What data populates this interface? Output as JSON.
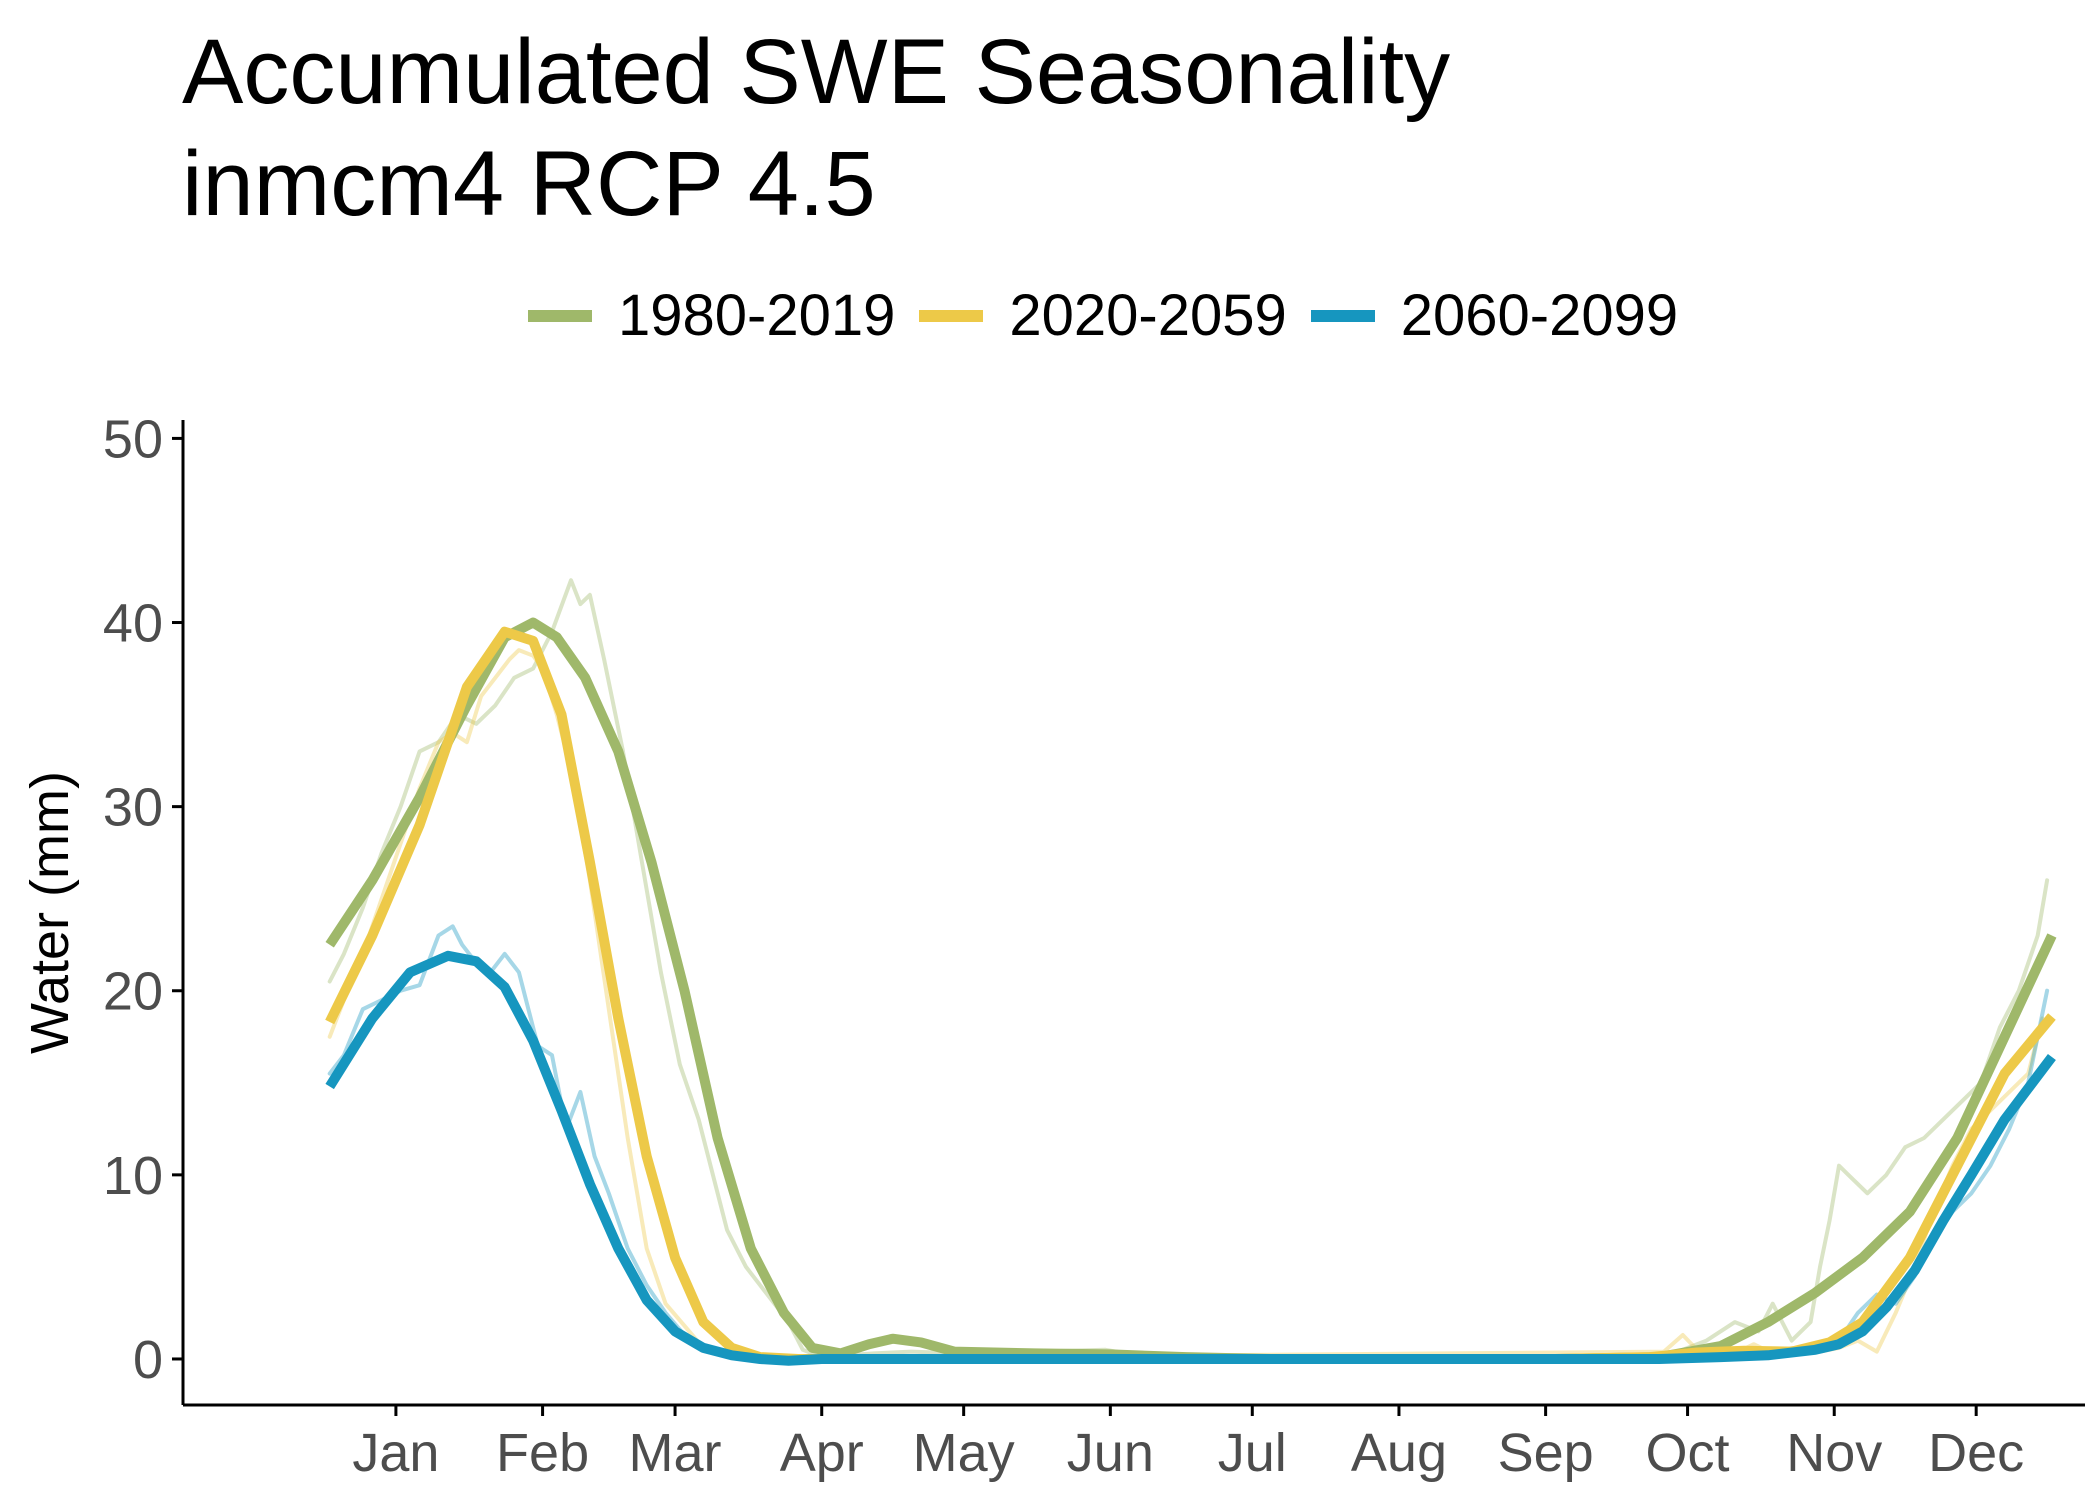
{
  "chart_data": {
    "type": "line",
    "title": "Accumulated SWE Seasonality",
    "subtitle": "inmcm4 RCP 4.5",
    "xlabel": "",
    "ylabel": "Water (mm)",
    "ylim": [
      -2.5,
      51
    ],
    "xlim": [
      -30,
      372
    ],
    "yticks": [
      0,
      10,
      20,
      30,
      40,
      50
    ],
    "xticks": [
      {
        "label": "Jan",
        "day": 15
      },
      {
        "label": "Feb",
        "day": 46
      },
      {
        "label": "Mar",
        "day": 74
      },
      {
        "label": "Apr",
        "day": 105
      },
      {
        "label": "May",
        "day": 135
      },
      {
        "label": "Jun",
        "day": 166
      },
      {
        "label": "Jul",
        "day": 196
      },
      {
        "label": "Aug",
        "day": 227
      },
      {
        "label": "Sep",
        "day": 258
      },
      {
        "label": "Oct",
        "day": 288
      },
      {
        "label": "Nov",
        "day": 319
      },
      {
        "label": "Dec",
        "day": 349
      }
    ],
    "grid": false,
    "legend_position": "top",
    "series": [
      {
        "name": "1980-2019",
        "color": "#9fb86a",
        "smooth": [
          [
            1,
            22.5
          ],
          [
            10,
            26
          ],
          [
            20,
            30.5
          ],
          [
            30,
            35.5
          ],
          [
            38,
            39.2
          ],
          [
            44,
            40
          ],
          [
            49,
            39.2
          ],
          [
            55,
            37
          ],
          [
            62,
            33
          ],
          [
            69,
            27
          ],
          [
            76,
            20
          ],
          [
            83,
            12
          ],
          [
            90,
            6
          ],
          [
            97,
            2.5
          ],
          [
            103,
            0.6
          ],
          [
            109,
            0.3
          ],
          [
            115,
            0.8
          ],
          [
            120,
            1.1
          ],
          [
            126,
            0.9
          ],
          [
            133,
            0.4
          ],
          [
            150,
            0.3
          ],
          [
            166,
            0.25
          ],
          [
            182,
            0.1
          ],
          [
            200,
            0
          ],
          [
            230,
            0
          ],
          [
            260,
            0
          ],
          [
            282,
            0.1
          ],
          [
            295,
            0.7
          ],
          [
            305,
            2
          ],
          [
            315,
            3.6
          ],
          [
            325,
            5.5
          ],
          [
            335,
            8
          ],
          [
            345,
            12
          ],
          [
            355,
            17.5
          ],
          [
            365,
            23
          ]
        ],
        "raw": [
          [
            1,
            20.5
          ],
          [
            4,
            22
          ],
          [
            8,
            24.5
          ],
          [
            12,
            27.5
          ],
          [
            16,
            30
          ],
          [
            20,
            33
          ],
          [
            24,
            33.5
          ],
          [
            28,
            35
          ],
          [
            32,
            34.5
          ],
          [
            36,
            35.5
          ],
          [
            40,
            37
          ],
          [
            44,
            37.5
          ],
          [
            48,
            39.5
          ],
          [
            52,
            42.3
          ],
          [
            54,
            41
          ],
          [
            56,
            41.5
          ],
          [
            59,
            38
          ],
          [
            63,
            33
          ],
          [
            67,
            27
          ],
          [
            71,
            21
          ],
          [
            75,
            16
          ],
          [
            79,
            13
          ],
          [
            82,
            10
          ],
          [
            85,
            7
          ],
          [
            89,
            5
          ],
          [
            92,
            4
          ],
          [
            95,
            3
          ],
          [
            98,
            2
          ],
          [
            101,
            0.5
          ],
          [
            104,
            0.2
          ],
          [
            110,
            0.2
          ],
          [
            116,
            0.3
          ],
          [
            124,
            0.4
          ],
          [
            134,
            0.3
          ],
          [
            165,
            0.5
          ],
          [
            172,
            0.2
          ],
          [
            200,
            0
          ],
          [
            260,
            0
          ],
          [
            285,
            0.3
          ],
          [
            292,
            1
          ],
          [
            298,
            2
          ],
          [
            303,
            1.5
          ],
          [
            306,
            3
          ],
          [
            310,
            1
          ],
          [
            314,
            2
          ],
          [
            316,
            5
          ],
          [
            318,
            7.5
          ],
          [
            320,
            10.5
          ],
          [
            322,
            10
          ],
          [
            326,
            9
          ],
          [
            330,
            10
          ],
          [
            334,
            11.5
          ],
          [
            338,
            12
          ],
          [
            342,
            13
          ],
          [
            346,
            14
          ],
          [
            350,
            15
          ],
          [
            354,
            18
          ],
          [
            358,
            20
          ],
          [
            362,
            23
          ],
          [
            364,
            26
          ]
        ]
      },
      {
        "name": "2020-2059",
        "color": "#edc948",
        "smooth": [
          [
            1,
            18.3
          ],
          [
            10,
            23
          ],
          [
            20,
            29
          ],
          [
            30,
            36.5
          ],
          [
            38,
            39.5
          ],
          [
            44,
            39
          ],
          [
            50,
            35
          ],
          [
            56,
            27
          ],
          [
            62,
            18.5
          ],
          [
            68,
            11
          ],
          [
            74,
            5.5
          ],
          [
            80,
            2
          ],
          [
            86,
            0.6
          ],
          [
            92,
            0.1
          ],
          [
            100,
            0
          ],
          [
            130,
            0
          ],
          [
            166,
            0
          ],
          [
            200,
            0
          ],
          [
            260,
            0
          ],
          [
            280,
            0.1
          ],
          [
            290,
            0.35
          ],
          [
            300,
            0.45
          ],
          [
            310,
            0.4
          ],
          [
            318,
            0.9
          ],
          [
            325,
            2
          ],
          [
            335,
            5.5
          ],
          [
            345,
            10.5
          ],
          [
            355,
            15.5
          ],
          [
            365,
            18.6
          ]
        ],
        "raw": [
          [
            1,
            17.5
          ],
          [
            4,
            19.5
          ],
          [
            8,
            22
          ],
          [
            12,
            25
          ],
          [
            16,
            28
          ],
          [
            20,
            31
          ],
          [
            24,
            33.5
          ],
          [
            27,
            34
          ],
          [
            30,
            33.5
          ],
          [
            33,
            36
          ],
          [
            36,
            37
          ],
          [
            39,
            38
          ],
          [
            41,
            38.5
          ],
          [
            44,
            38.2
          ],
          [
            46,
            37.5
          ],
          [
            49,
            35
          ],
          [
            52,
            32
          ],
          [
            56,
            26
          ],
          [
            60,
            19
          ],
          [
            64,
            12
          ],
          [
            68,
            6
          ],
          [
            72,
            3
          ],
          [
            76,
            1.8
          ],
          [
            80,
            0.6
          ],
          [
            85,
            0.2
          ],
          [
            90,
            0
          ],
          [
            283,
            0.4
          ],
          [
            287,
            1.3
          ],
          [
            290,
            0.5
          ],
          [
            294,
            0.8
          ],
          [
            298,
            0.3
          ],
          [
            302,
            0.8
          ],
          [
            306,
            0.3
          ],
          [
            310,
            0.6
          ],
          [
            316,
            0.4
          ],
          [
            320,
            0.6
          ],
          [
            324,
            1
          ],
          [
            328,
            0.4
          ],
          [
            332,
            2.5
          ],
          [
            336,
            5
          ],
          [
            340,
            8
          ],
          [
            344,
            10.5
          ],
          [
            348,
            12.5
          ],
          [
            352,
            13.5
          ],
          [
            356,
            14.5
          ],
          [
            360,
            15.5
          ],
          [
            363,
            18.5
          ]
        ]
      },
      {
        "name": "2060-2099",
        "color": "#1696bf",
        "smooth": [
          [
            1,
            14.8
          ],
          [
            10,
            18.5
          ],
          [
            18,
            21
          ],
          [
            26,
            21.9
          ],
          [
            32,
            21.6
          ],
          [
            38,
            20.2
          ],
          [
            44,
            17.3
          ],
          [
            50,
            13.5
          ],
          [
            56,
            9.5
          ],
          [
            62,
            6
          ],
          [
            68,
            3.2
          ],
          [
            74,
            1.5
          ],
          [
            80,
            0.6
          ],
          [
            86,
            0.2
          ],
          [
            92,
            0
          ],
          [
            98,
            -0.1
          ],
          [
            105,
            0
          ],
          [
            120,
            0
          ],
          [
            166,
            0
          ],
          [
            200,
            0
          ],
          [
            260,
            0
          ],
          [
            282,
            0
          ],
          [
            295,
            0.1
          ],
          [
            305,
            0.2
          ],
          [
            315,
            0.5
          ],
          [
            320,
            0.8
          ],
          [
            325,
            1.5
          ],
          [
            330,
            2.8
          ],
          [
            336,
            4.8
          ],
          [
            342,
            7.5
          ],
          [
            348,
            10
          ],
          [
            355,
            13
          ],
          [
            365,
            16.4
          ]
        ],
        "raw": [
          [
            1,
            15.5
          ],
          [
            4,
            16.5
          ],
          [
            8,
            19
          ],
          [
            12,
            19.5
          ],
          [
            16,
            20
          ],
          [
            20,
            20.3
          ],
          [
            24,
            23
          ],
          [
            27,
            23.5
          ],
          [
            29,
            22.5
          ],
          [
            32,
            21.5
          ],
          [
            35,
            21
          ],
          [
            38,
            22
          ],
          [
            41,
            21
          ],
          [
            43,
            19
          ],
          [
            45,
            17
          ],
          [
            48,
            16.5
          ],
          [
            51,
            12.5
          ],
          [
            54,
            14.5
          ],
          [
            57,
            11
          ],
          [
            60,
            9
          ],
          [
            64,
            6
          ],
          [
            68,
            4
          ],
          [
            72,
            2.5
          ],
          [
            76,
            1.3
          ],
          [
            80,
            0.6
          ],
          [
            86,
            0.1
          ],
          [
            92,
            0
          ],
          [
            300,
            0
          ],
          [
            310,
            0.3
          ],
          [
            316,
            0.7
          ],
          [
            320,
            1
          ],
          [
            324,
            2.5
          ],
          [
            328,
            3.5
          ],
          [
            332,
            3
          ],
          [
            336,
            4.5
          ],
          [
            340,
            6.5
          ],
          [
            344,
            8
          ],
          [
            348,
            9
          ],
          [
            352,
            10.5
          ],
          [
            356,
            12.5
          ],
          [
            360,
            15
          ],
          [
            364,
            20
          ]
        ]
      }
    ]
  }
}
